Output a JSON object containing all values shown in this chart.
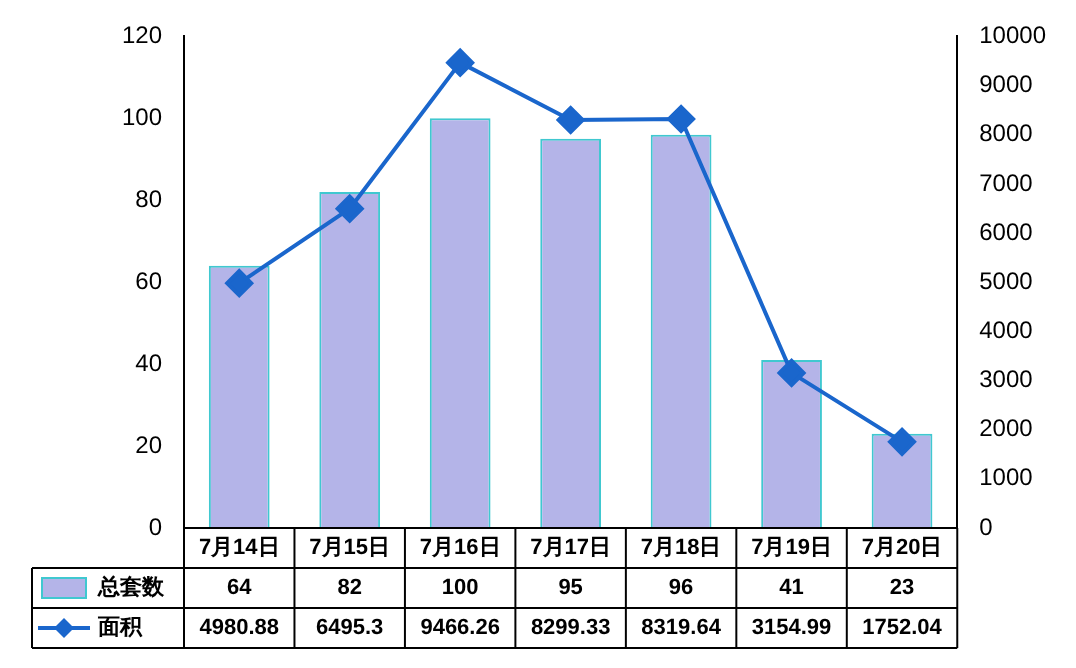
{
  "chart_data": {
    "type": "bar",
    "categories": [
      "7月14日",
      "7月15日",
      "7月16日",
      "7月17日",
      "7月18日",
      "7月19日",
      "7月20日"
    ],
    "series": [
      {
        "name": "总套数",
        "color": "#b4b4e8",
        "values": [
          64,
          82,
          100,
          95,
          96,
          41,
          23
        ]
      },
      {
        "name": "面积",
        "type": "line",
        "axis": "y2",
        "color": "#1a66cc",
        "values": [
          4980.88,
          6495.3,
          9466.26,
          8299.33,
          8319.64,
          3154.99,
          1752.04
        ]
      }
    ],
    "ylim": [
      0,
      120
    ],
    "yticks": [
      0,
      20,
      40,
      60,
      80,
      100,
      120
    ],
    "y2lim": [
      0,
      10000
    ],
    "y2ticks": [
      0,
      1000,
      2000,
      3000,
      4000,
      5000,
      6000,
      7000,
      8000,
      9000,
      10000
    ],
    "data_labels": true,
    "legend": "bottom left",
    "marker": "diamond",
    "line_style": "solid",
    "grid": false
  }
}
